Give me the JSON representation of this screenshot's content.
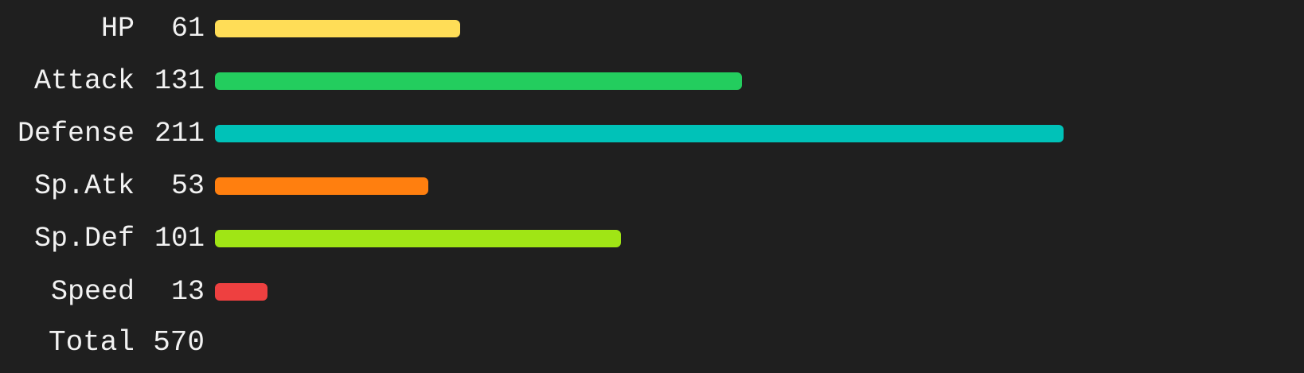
{
  "chart_data": {
    "type": "bar",
    "orientation": "horizontal",
    "categories": [
      "HP",
      "Attack",
      "Defense",
      "Sp.Atk",
      "Sp.Def",
      "Speed"
    ],
    "values": [
      61,
      131,
      211,
      53,
      101,
      13
    ],
    "colors": [
      "#ffdd57",
      "#23cd5e",
      "#00c2b8",
      "#ff7f0f",
      "#a0e515",
      "#ee4040"
    ],
    "rows": [
      {
        "label": "HP",
        "value": "61",
        "color": "#ffdd57"
      },
      {
        "label": "Attack",
        "value": "131",
        "color": "#23cd5e"
      },
      {
        "label": "Defense",
        "value": "211",
        "color": "#00c2b8"
      },
      {
        "label": "Sp.Atk",
        "value": "53",
        "color": "#ff7f0f"
      },
      {
        "label": "Sp.Def",
        "value": "101",
        "color": "#a0e515"
      },
      {
        "label": "Speed",
        "value": "13",
        "color": "#ee4040"
      }
    ],
    "total": {
      "label": "Total",
      "value": "570"
    },
    "xlim": [
      0,
      211
    ],
    "grid": false,
    "background": "#1f1f1f",
    "text_color": "#f2f2f2"
  }
}
